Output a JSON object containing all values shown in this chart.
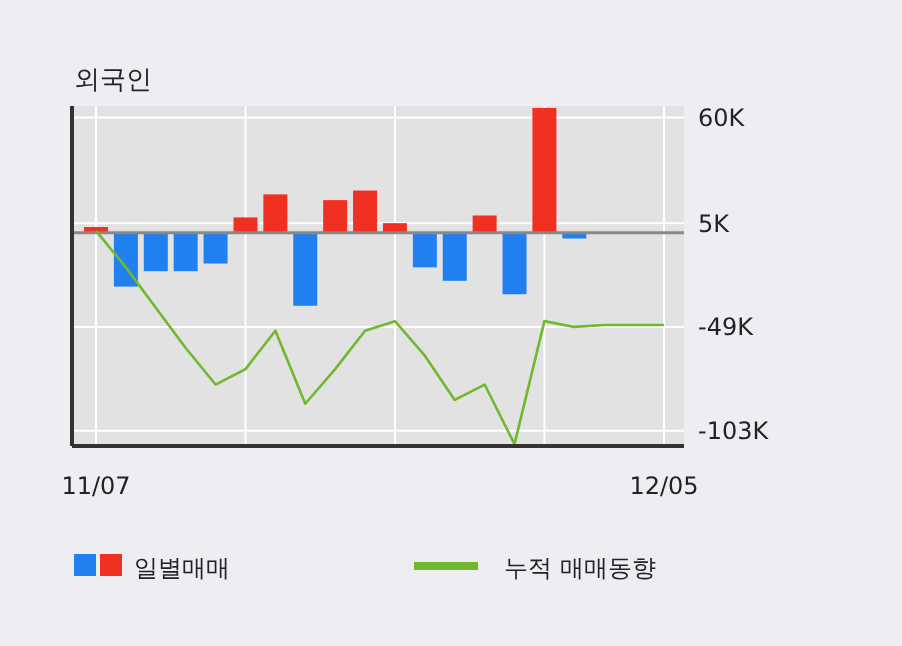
{
  "chart_data": {
    "type": "bar",
    "title": "외국인",
    "categories": [
      "11/07",
      null,
      null,
      null,
      null,
      null,
      null,
      null,
      null,
      null,
      null,
      null,
      null,
      null,
      null,
      null,
      null,
      null,
      null,
      "12/05"
    ],
    "series": [
      {
        "name": "일별매매",
        "colors": [
          "#f03020",
          "#2080f0",
          "#2080f0",
          "#2080f0",
          "#2080f0",
          "#f03020",
          "#f03020",
          "#2080f0",
          "#f03020",
          "#f03020",
          "#f03020",
          "#2080f0",
          "#2080f0",
          "#f03020",
          "#2080f0",
          "#f03020",
          "#2080f0",
          "#f03020",
          "#f03020",
          "#f03020"
        ],
        "values": [
          3,
          -28,
          -20,
          -20,
          -16,
          8,
          20,
          -38,
          17,
          22,
          5,
          -18,
          -25,
          9,
          -32,
          65,
          -3,
          null,
          null,
          null
        ]
      },
      {
        "name": "누적 매매동향",
        "type": "line",
        "color": "#70b830",
        "values": [
          1,
          -18,
          -39,
          -60,
          -79,
          -71,
          -51,
          -89,
          -71,
          -51,
          -46,
          -64,
          -87,
          -79,
          -110,
          -46,
          -49,
          -48,
          -48,
          -48
        ]
      }
    ],
    "ylim": [
      -111,
      66
    ],
    "yticks": [
      {
        "value": 60,
        "label": "60K"
      },
      {
        "value": 5,
        "label": "5K"
      },
      {
        "value": -49,
        "label": "-49K"
      },
      {
        "value": -103,
        "label": "-103K"
      }
    ],
    "grid": true,
    "legend": "bottom"
  }
}
